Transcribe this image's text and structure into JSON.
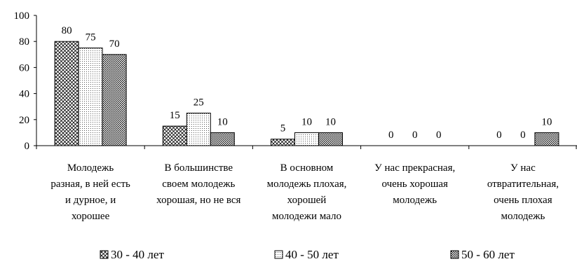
{
  "chart_data": {
    "type": "bar",
    "categories": [
      [
        "Молодежь",
        "разная, в ней есть",
        "и дурное, и",
        "хорошее"
      ],
      [
        "В большинстве",
        "своем молодежь",
        "хорошая, но не вся"
      ],
      [
        "В основном",
        "молодежь плохая,",
        "хорошей",
        "молодежи мало"
      ],
      [
        "У нас прекрасная,",
        "очень хорошая",
        "молодежь"
      ],
      [
        "У нас",
        "отвратительная,",
        "очень плохая",
        "молодежь"
      ]
    ],
    "series": [
      {
        "name": "30 - 40 лет",
        "pattern": "crosshatch",
        "values": [
          80,
          15,
          5,
          0,
          0
        ]
      },
      {
        "name": "40 - 50 лет",
        "pattern": "dots",
        "values": [
          75,
          25,
          10,
          0,
          0
        ]
      },
      {
        "name": "50 - 60 лет",
        "pattern": "dense",
        "values": [
          70,
          10,
          10,
          0,
          10
        ]
      }
    ],
    "yticks": [
      0,
      20,
      40,
      60,
      80,
      100
    ],
    "ylim": [
      0,
      100
    ],
    "legend_position": "bottom",
    "colors": {
      "bar_stroke": "#000000",
      "pattern_ink": "#000000",
      "background": "#ffffff"
    }
  }
}
